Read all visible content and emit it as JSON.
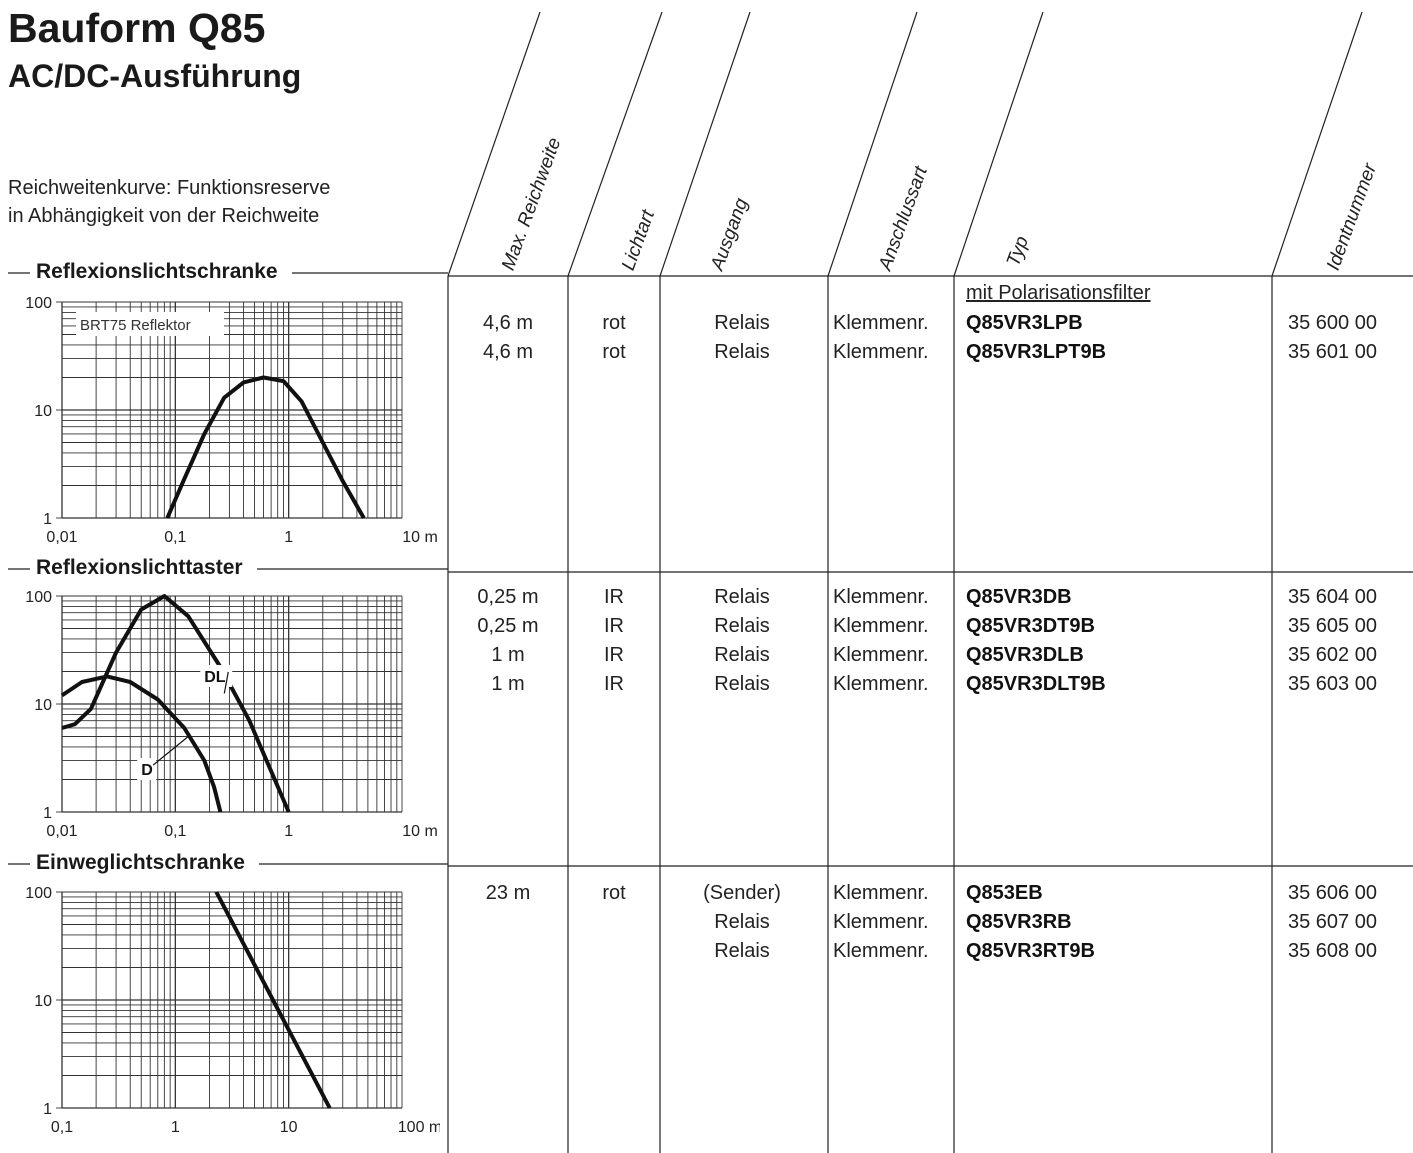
{
  "header": {
    "title": "Bauform Q85",
    "subtitle": "AC/DC-Ausführung",
    "intro_line1": "Reichweitenkurve: Funktionsreserve",
    "intro_line2": "in Abhängigkeit von der Reichweite"
  },
  "columns": [
    "Max. Reichweite",
    "Lichtart",
    "Ausgang",
    "Anschlussart",
    "Typ",
    "Identnummer"
  ],
  "sections": [
    {
      "title": "Reflexionslichtschranke",
      "note": "mit Polarisationsfilter",
      "rows": [
        {
          "range": "4,6 m",
          "light": "rot",
          "output": "Relais",
          "connection": "Klemmenr.",
          "type": "Q85VR3LPB",
          "id": "35 600 00"
        },
        {
          "range": "4,6 m",
          "light": "rot",
          "output": "Relais",
          "connection": "Klemmenr.",
          "type": "Q85VR3LPT9B",
          "id": "35 601 00"
        }
      ]
    },
    {
      "title": "Reflexionslichttaster",
      "note": "",
      "rows": [
        {
          "range": "0,25 m",
          "light": "IR",
          "output": "Relais",
          "connection": "Klemmenr.",
          "type": "Q85VR3DB",
          "id": "35 604 00"
        },
        {
          "range": "0,25 m",
          "light": "IR",
          "output": "Relais",
          "connection": "Klemmenr.",
          "type": "Q85VR3DT9B",
          "id": "35 605 00"
        },
        {
          "range": "1 m",
          "light": "IR",
          "output": "Relais",
          "connection": "Klemmenr.",
          "type": "Q85VR3DLB",
          "id": "35 602 00"
        },
        {
          "range": "1 m",
          "light": "IR",
          "output": "Relais",
          "connection": "Klemmenr.",
          "type": "Q85VR3DLT9B",
          "id": "35 603 00"
        }
      ]
    },
    {
      "title": "Einweglichtschranke",
      "note": "",
      "rows": [
        {
          "range": "23 m",
          "light": "rot",
          "output": "(Sender)",
          "connection": "Klemmenr.",
          "type": "Q853EB",
          "id": "35 606 00"
        },
        {
          "range": "",
          "light": "",
          "output": "Relais",
          "connection": "Klemmenr.",
          "type": "Q85VR3RB",
          "id": "35 607 00"
        },
        {
          "range": "",
          "light": "",
          "output": "Relais",
          "connection": "Klemmenr.",
          "type": "Q85VR3RT9B",
          "id": "35 608 00"
        }
      ]
    }
  ],
  "chart_data": [
    {
      "type": "line",
      "xscale": "log",
      "yscale": "log",
      "xlim": [
        0.01,
        10
      ],
      "ylim": [
        1,
        100
      ],
      "xticks": [
        "0,01",
        "0,1",
        "1",
        "10 m"
      ],
      "yticks": [
        "1",
        "10",
        "100"
      ],
      "annotation": "BRT75 Reflektor",
      "grid": true,
      "series": [
        {
          "name": "",
          "x": [
            0.085,
            0.12,
            0.18,
            0.27,
            0.4,
            0.6,
            0.9,
            1.3,
            2.0,
            3.0,
            4.6
          ],
          "y": [
            1,
            2.3,
            6,
            13,
            18,
            20,
            18.5,
            12,
            5,
            2.2,
            1
          ]
        }
      ]
    },
    {
      "type": "line",
      "xscale": "log",
      "yscale": "log",
      "xlim": [
        0.01,
        10
      ],
      "ylim": [
        1,
        100
      ],
      "xticks": [
        "0,01",
        "0,1",
        "1",
        "10 m"
      ],
      "yticks": [
        "1",
        "10",
        "100"
      ],
      "grid": true,
      "series": [
        {
          "name": "DL",
          "x": [
            0.01,
            0.013,
            0.018,
            0.03,
            0.05,
            0.08,
            0.13,
            0.25,
            0.45,
            1.0
          ],
          "y": [
            6,
            6.5,
            9,
            30,
            75,
            100,
            65,
            22,
            7,
            1
          ]
        },
        {
          "name": "D",
          "x": [
            0.01,
            0.015,
            0.025,
            0.04,
            0.07,
            0.12,
            0.18,
            0.22,
            0.25
          ],
          "y": [
            12,
            16,
            18,
            16,
            11,
            6,
            3,
            1.7,
            1
          ]
        }
      ]
    },
    {
      "type": "line",
      "xscale": "log",
      "yscale": "log",
      "xlim": [
        0.1,
        100
      ],
      "ylim": [
        1,
        100
      ],
      "xticks": [
        "0,1",
        "1",
        "10",
        "100 m"
      ],
      "yticks": [
        "1",
        "10",
        "100"
      ],
      "grid": true,
      "series": [
        {
          "name": "",
          "x": [
            2.3,
            23
          ],
          "y": [
            100,
            1
          ]
        }
      ]
    }
  ]
}
